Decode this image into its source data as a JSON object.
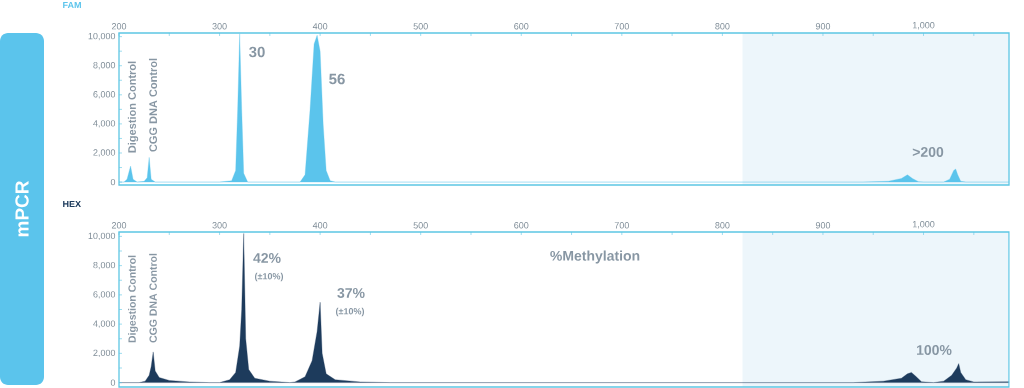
{
  "chart_data": [
    {
      "type": "area",
      "title": "FAM",
      "color": "#5bc4ec",
      "x": [
        200,
        205,
        208,
        211.5,
        214,
        218,
        225,
        228,
        230,
        232,
        236,
        300,
        312,
        316,
        318,
        320,
        322,
        324,
        328,
        380,
        385,
        390,
        394,
        397,
        400,
        403,
        406,
        410,
        415,
        940,
        965,
        978,
        984,
        989,
        995,
        1000,
        1020,
        1026,
        1030,
        1032,
        1034,
        1037,
        1042,
        1085
      ],
      "values": [
        0,
        0,
        200,
        1100,
        200,
        0,
        50,
        300,
        1700,
        200,
        0,
        0,
        100,
        800,
        5000,
        10200,
        5000,
        600,
        0,
        0,
        500,
        5000,
        9500,
        10100,
        9000,
        4000,
        800,
        100,
        0,
        0,
        60,
        250,
        500,
        250,
        30,
        0,
        0,
        200,
        800,
        900,
        500,
        60,
        0,
        0
      ],
      "xlim": [
        200,
        1085
      ],
      "ylim": [
        -200,
        10250
      ],
      "xticks": [
        200,
        {
          "value": 250,
          "label": null
        },
        300,
        {
          "value": 350,
          "label": null
        },
        400,
        {
          "value": 450,
          "label": null
        },
        500,
        {
          "value": 550,
          "label": null
        },
        600,
        {
          "value": 650,
          "label": null
        },
        700,
        {
          "value": 750,
          "label": null
        },
        800,
        {
          "value": 850,
          "label": null
        },
        900,
        {
          "value": 950,
          "label": null
        },
        {
          "value": 1000,
          "label": "1,000"
        },
        {
          "value": 1050,
          "label": null
        }
      ],
      "yticks": [
        0,
        {
          "value": 1000,
          "label": null
        },
        {
          "value": 2000,
          "label": "2,000"
        },
        {
          "value": 3000,
          "label": null
        },
        {
          "value": 4000,
          "label": "4,000"
        },
        {
          "value": 5000,
          "label": null
        },
        {
          "value": 6000,
          "label": "6,000"
        },
        {
          "value": 7000,
          "label": null
        },
        {
          "value": 8000,
          "label": "8,000"
        },
        {
          "value": 9000,
          "label": null
        },
        {
          "value": 10000,
          "label": "10,000"
        }
      ],
      "bands": [
        {
          "axis": "x",
          "from": 820,
          "to": 1085,
          "color": "#edf6fb"
        }
      ],
      "annotations": [
        "mPCR",
        "Digestion Control",
        "CGG DNA Control",
        "30",
        "56",
        ">200"
      ]
    },
    {
      "type": "area",
      "title": "HEX",
      "color": "#1d3b5c",
      "x": [
        200,
        220,
        226,
        230,
        232,
        234,
        236,
        240,
        250,
        270,
        290,
        300,
        310,
        316,
        320,
        322,
        324,
        326,
        329,
        335,
        350,
        370,
        375,
        385,
        392,
        397,
        400,
        402,
        406,
        415,
        440,
        470,
        930,
        960,
        978,
        984,
        988,
        992,
        998,
        1010,
        1020,
        1028,
        1033,
        1035,
        1037,
        1042,
        1050,
        1085
      ],
      "values": [
        0,
        0,
        100,
        500,
        1100,
        2100,
        800,
        350,
        150,
        50,
        0,
        0,
        200,
        700,
        2500,
        5000,
        10200,
        3000,
        900,
        300,
        100,
        0,
        50,
        400,
        1500,
        3500,
        5500,
        2000,
        600,
        200,
        50,
        0,
        0,
        100,
        300,
        600,
        700,
        450,
        60,
        0,
        100,
        500,
        1000,
        1300,
        700,
        200,
        50,
        60
      ],
      "xlim": [
        200,
        1085
      ],
      "ylim": [
        -300,
        10300
      ],
      "xticks": [
        200,
        {
          "value": 250,
          "label": null
        },
        300,
        {
          "value": 350,
          "label": null
        },
        400,
        {
          "value": 450,
          "label": null
        },
        500,
        {
          "value": 550,
          "label": null
        },
        600,
        {
          "value": 650,
          "label": null
        },
        700,
        {
          "value": 750,
          "label": null
        },
        800,
        {
          "value": 850,
          "label": null
        },
        900,
        {
          "value": 950,
          "label": null
        },
        {
          "value": 1000,
          "label": "1,000"
        },
        {
          "value": 1050,
          "label": null
        }
      ],
      "yticks": [
        0,
        {
          "value": 1000,
          "label": null
        },
        {
          "value": 2000,
          "label": "2,000"
        },
        {
          "value": 3000,
          "label": null
        },
        {
          "value": 4000,
          "label": "4,000"
        },
        {
          "value": 5000,
          "label": null
        },
        {
          "value": 6000,
          "label": "6,000"
        },
        {
          "value": 7000,
          "label": null
        },
        {
          "value": 8000,
          "label": "8,000"
        },
        {
          "value": 9000,
          "label": null
        },
        {
          "value": 10000,
          "label": "10,000"
        }
      ],
      "bands": [
        {
          "axis": "x",
          "from": 820,
          "to": 1085,
          "color": "#edf6fb"
        }
      ],
      "annotations": [
        "Digestion Control",
        "CGG DNA Control",
        "42%",
        "(±10%)",
        "37%",
        "(±10%)",
        "%Methylation",
        "100%"
      ]
    }
  ]
}
